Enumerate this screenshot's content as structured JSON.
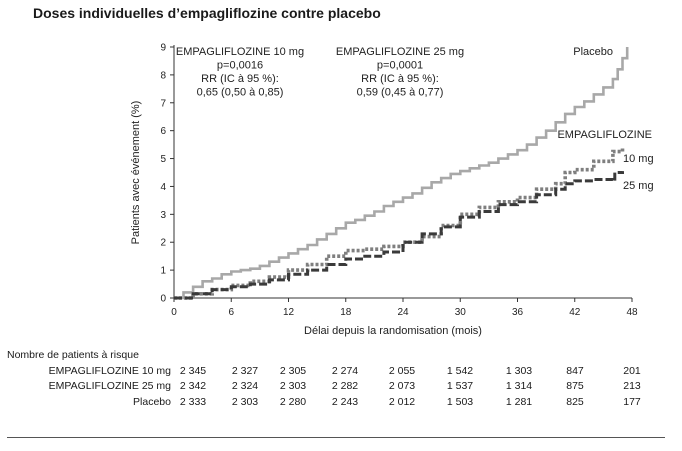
{
  "title": "Doses individuelles d’empagliflozine contre placebo",
  "chart_data": {
    "type": "line",
    "xlabel": "Délai depuis la randomisation (mois)",
    "ylabel": "Patients avec événement (%)",
    "xlim": [
      0,
      48
    ],
    "ylim": [
      0,
      9
    ],
    "xticks": [
      "0",
      "6",
      "12",
      "18",
      "24",
      "30",
      "36",
      "42",
      "48"
    ],
    "yticks": [
      "0",
      "1",
      "2",
      "3",
      "4",
      "5",
      "6",
      "7",
      "8",
      "9"
    ],
    "series": [
      {
        "name": "Placebo",
        "color": "#a8a8a8",
        "style": "solid",
        "x": [
          0,
          1,
          2,
          3,
          4,
          5,
          6,
          7,
          8,
          9,
          10,
          11,
          12,
          13,
          14,
          15,
          16,
          17,
          18,
          19,
          20,
          21,
          22,
          23,
          24,
          25,
          26,
          27,
          28,
          29,
          30,
          31,
          32,
          33,
          34,
          35,
          36,
          37,
          38,
          39,
          40,
          41,
          42,
          43,
          44,
          45,
          46,
          46.5,
          47,
          47.5
        ],
        "y": [
          0,
          0.2,
          0.4,
          0.6,
          0.7,
          0.85,
          0.95,
          1.0,
          1.05,
          1.15,
          1.3,
          1.45,
          1.6,
          1.75,
          1.9,
          2.1,
          2.3,
          2.5,
          2.7,
          2.8,
          2.95,
          3.1,
          3.3,
          3.45,
          3.6,
          3.75,
          3.95,
          4.15,
          4.3,
          4.45,
          4.55,
          4.65,
          4.75,
          4.85,
          5.0,
          5.15,
          5.3,
          5.5,
          5.75,
          6.0,
          6.3,
          6.6,
          6.85,
          7.05,
          7.3,
          7.55,
          7.85,
          8.2,
          8.6,
          9.0
        ]
      },
      {
        "name": "10 mg",
        "color": "#7f7f7f",
        "style": "dotted",
        "x": [
          0,
          2,
          4,
          6,
          8,
          10,
          12,
          14,
          16,
          18,
          20,
          22,
          24,
          26,
          28,
          30,
          32,
          34,
          36,
          38,
          40,
          41,
          42,
          44,
          46,
          47
        ],
        "y": [
          0,
          0.15,
          0.3,
          0.45,
          0.6,
          0.75,
          1.0,
          1.2,
          1.5,
          1.7,
          1.75,
          1.85,
          2.0,
          2.2,
          2.6,
          3.0,
          3.25,
          3.45,
          3.6,
          3.9,
          4.1,
          4.5,
          4.6,
          4.9,
          5.25,
          5.4
        ]
      },
      {
        "name": "25 mg",
        "color": "#3a3a3a",
        "style": "dashed",
        "x": [
          0,
          2,
          4,
          6,
          8,
          10,
          12,
          14,
          16,
          18,
          20,
          22,
          24,
          26,
          28,
          30,
          32,
          34,
          36,
          38,
          40,
          41,
          42,
          44,
          46,
          46.2,
          47
        ],
        "y": [
          0,
          0.15,
          0.3,
          0.4,
          0.5,
          0.65,
          0.85,
          1.0,
          1.2,
          1.4,
          1.5,
          1.65,
          2.0,
          2.3,
          2.55,
          2.9,
          3.1,
          3.35,
          3.45,
          3.7,
          3.9,
          4.1,
          4.2,
          4.25,
          4.2,
          4.5,
          4.55
        ]
      }
    ],
    "annotations": [
      {
        "id": "ann-10",
        "lines": [
          "EMPAGLIFLOZINE 10 mg",
          "p=0,0016",
          "RR (IC à 95 %):",
          "0,65 (0,50 à 0,85)"
        ]
      },
      {
        "id": "ann-25",
        "lines": [
          "EMPAGLIFLOZINE 25 mg",
          "p=0,0001",
          "RR (IC à 95 %):",
          "0,59 (0,45 à  0,77)"
        ]
      }
    ],
    "line_labels": {
      "placebo": "Placebo",
      "empa": "EMPAGLIFLOZINE",
      "dose10": "10 mg",
      "dose25": "25 mg"
    }
  },
  "risk_table": {
    "header": "Nombre de patients à risque",
    "rows": [
      {
        "label": "EMPAGLIFLOZINE 10 mg",
        "values": [
          "2 345",
          "2 327",
          "2 305",
          "2 274",
          "2 055",
          "1 542",
          "1 303",
          "847",
          "201"
        ]
      },
      {
        "label": "EMPAGLIFLOZINE 25 mg",
        "values": [
          "2 342",
          "2 324",
          "2 303",
          "2 282",
          "2 073",
          "1 537",
          "1 314",
          "875",
          "213"
        ]
      },
      {
        "label": "Placebo",
        "values": [
          "2 333",
          "2 303",
          "2 280",
          "2 243",
          "2 012",
          "1 503",
          "1 281",
          "825",
          "177"
        ]
      }
    ]
  }
}
